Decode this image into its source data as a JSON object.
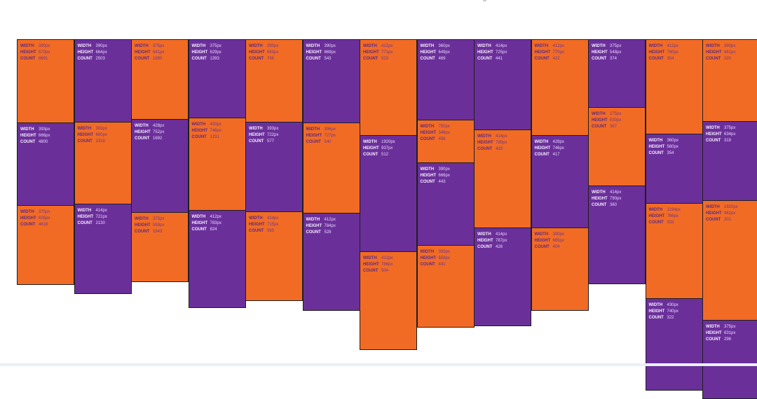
{
  "colors": {
    "orange": "#f26b25",
    "purple": "#6b2f9a",
    "border": "#1e1e1e"
  },
  "labels": {
    "width": "WIDTH",
    "height": "HEIGHT",
    "count": "COUNT"
  },
  "chart_data": {
    "type": "table",
    "columns": [
      [
        {
          "width": "390px",
          "height": "670px",
          "count": "8691",
          "color": "orange"
        },
        {
          "width": "393px",
          "height": "666px",
          "count": "4800",
          "color": "purple"
        },
        {
          "width": "375px",
          "height": "635px",
          "count": "4618",
          "color": "orange"
        }
      ],
      [
        {
          "width": "390px",
          "height": "664px",
          "count": "2503",
          "color": "purple"
        },
        {
          "width": "393px",
          "height": "660px",
          "count": "2318",
          "color": "orange"
        },
        {
          "width": "414px",
          "height": "721px",
          "count": "2130",
          "color": "purple"
        }
      ],
      [
        {
          "width": "375px",
          "height": "641px",
          "count": "1890",
          "color": "orange"
        },
        {
          "width": "428px",
          "height": "752px",
          "count": "1692",
          "color": "purple"
        },
        {
          "width": "375px",
          "height": "559px",
          "count": "1643",
          "color": "orange"
        }
      ],
      [
        {
          "width": "375px",
          "height": "629px",
          "count": "1393",
          "color": "purple"
        },
        {
          "width": "430px",
          "height": "746px",
          "count": "1231",
          "color": "orange"
        },
        {
          "width": "412px",
          "height": "783px",
          "count": "824",
          "color": "purple"
        }
      ],
      [
        {
          "width": "390px",
          "height": "663px",
          "count": "766",
          "color": "orange"
        },
        {
          "width": "393px",
          "height": "722px",
          "count": "577",
          "color": "purple"
        },
        {
          "width": "414px",
          "height": "715px",
          "count": "565",
          "color": "orange"
        }
      ],
      [
        {
          "width": "390px",
          "height": "669px",
          "count": "543",
          "color": "purple"
        },
        {
          "width": "396px",
          "height": "727px",
          "count": "540",
          "color": "orange"
        },
        {
          "width": "412px",
          "height": "784px",
          "count": "528",
          "color": "purple"
        }
      ],
      [
        {
          "width": "412px",
          "height": "771px",
          "count": "523",
          "color": "orange"
        },
        {
          "width": "1920px",
          "height": "937px",
          "count": "512",
          "color": "purple"
        },
        {
          "width": "412px",
          "height": "786px",
          "count": "504",
          "color": "orange"
        }
      ],
      [
        {
          "width": "360px",
          "height": "649px",
          "count": "469",
          "color": "purple"
        },
        {
          "width": "750px",
          "height": "346px",
          "count": "456",
          "color": "orange"
        },
        {
          "width": "390px",
          "height": "666px",
          "count": "443",
          "color": "purple"
        },
        {
          "width": "393px",
          "height": "659px",
          "count": "441",
          "color": "orange"
        }
      ],
      [
        {
          "width": "414px",
          "height": "725px",
          "count": "441",
          "color": "purple"
        },
        {
          "width": "414px",
          "height": "789px",
          "count": "429",
          "color": "orange"
        },
        {
          "width": "414px",
          "height": "787px",
          "count": "428",
          "color": "purple"
        }
      ],
      [
        {
          "width": "412px",
          "height": "770px",
          "count": "422",
          "color": "orange"
        },
        {
          "width": "428px",
          "height": "746px",
          "count": "417",
          "color": "purple"
        },
        {
          "width": "390px",
          "height": "665px",
          "count": "404",
          "color": "orange"
        }
      ],
      [
        {
          "width": "375px",
          "height": "548px",
          "count": "374",
          "color": "purple"
        },
        {
          "width": "375px",
          "height": "630px",
          "count": "367",
          "color": "orange"
        },
        {
          "width": "414px",
          "height": "790px",
          "count": "360",
          "color": "purple"
        }
      ],
      [
        {
          "width": "412px",
          "height": "760px",
          "count": "354",
          "color": "orange"
        },
        {
          "width": "360px",
          "height": "560px",
          "count": "354",
          "color": "purple"
        },
        {
          "width": "1194px",
          "height": "766px",
          "count": "333",
          "color": "orange"
        },
        {
          "width": "430px",
          "height": "740px",
          "count": "322",
          "color": "purple"
        }
      ],
      [
        {
          "width": "390px",
          "height": "661px",
          "count": "320",
          "color": "orange"
        },
        {
          "width": "375px",
          "height": "634px",
          "count": "319",
          "color": "purple"
        },
        {
          "width": "1920px",
          "height": "961px",
          "count": "301",
          "color": "orange"
        },
        {
          "width": "375px",
          "height": "631px",
          "count": "296",
          "color": "purple"
        }
      ]
    ]
  }
}
